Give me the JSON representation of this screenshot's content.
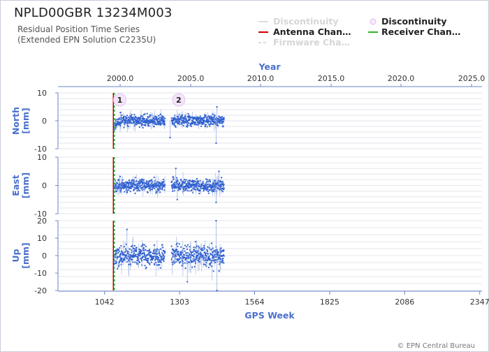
{
  "header": {
    "title": "NPLD00GBR 13234M003",
    "subtitle1": "Residual Position Time Series",
    "subtitle2": "(Extended EPN Solution C2235U)"
  },
  "legend": [
    {
      "label": "Discontinuity",
      "symbol": "line",
      "color": "#dddddd",
      "state": "dim"
    },
    {
      "label": "Discontinuity",
      "symbol": "circle",
      "color": "#e8c8f0",
      "state": "on"
    },
    {
      "label": "Antenna Chan…",
      "symbol": "line",
      "color": "#cc0000",
      "state": "on"
    },
    {
      "label": "Receiver Chan…",
      "symbol": "line",
      "color": "#2db52d",
      "state": "on"
    },
    {
      "label": "Firmware Cha…",
      "symbol": "dash",
      "color": "#dddddd",
      "state": "dim"
    }
  ],
  "credit": "© EPN Central Bureau",
  "chart_data": {
    "type": "scatter",
    "top_axis": {
      "label": "Year",
      "ticks": [
        "2000.0",
        "2005.0",
        "2010.0",
        "2015.0",
        "2020.0",
        "2025.0"
      ]
    },
    "bottom_axis": {
      "label": "GPS Week",
      "ticks": [
        "1042",
        "1303",
        "1564",
        "1825",
        "2086",
        "2347"
      ],
      "range": [
        880,
        2355
      ]
    },
    "events": {
      "antenna_change_week": 1075,
      "receiver_change_week": 1075
    },
    "discontinuities": [
      {
        "label": "1",
        "week": 1095
      },
      {
        "label": "2",
        "week": 1300
      }
    ],
    "series_color": "#3060d0",
    "segments": [
      [
        1075,
        1252
      ],
      [
        1273,
        1458
      ]
    ],
    "panels": [
      {
        "name": "North",
        "ylabel": "North\n[mm]",
        "ylim": [
          -10,
          10
        ],
        "yticks": [
          "10",
          "0",
          "-10"
        ],
        "noise": 1.0,
        "seed": 11,
        "spikes": [
          [
            1097,
            3
          ],
          [
            1270,
            -6
          ],
          [
            1430,
            -8
          ],
          [
            1433,
            5
          ]
        ]
      },
      {
        "name": "East",
        "ylabel": "East\n[mm]",
        "ylim": [
          -10,
          10
        ],
        "yticks": [
          "10",
          "0",
          "-10"
        ],
        "noise": 1.1,
        "seed": 23,
        "spikes": [
          [
            1290,
            6
          ],
          [
            1295,
            -5
          ],
          [
            1430,
            -6
          ],
          [
            1440,
            5
          ]
        ]
      },
      {
        "name": "Up",
        "ylabel": "Up\n[mm]",
        "ylim": [
          -20,
          20
        ],
        "yticks": [
          "20",
          "10",
          "0",
          "-10",
          "-20"
        ],
        "noise": 3.0,
        "seed": 37,
        "spikes": [
          [
            1120,
            15
          ],
          [
            1330,
            -15
          ],
          [
            1430,
            20
          ],
          [
            1433,
            -20
          ]
        ]
      }
    ]
  }
}
